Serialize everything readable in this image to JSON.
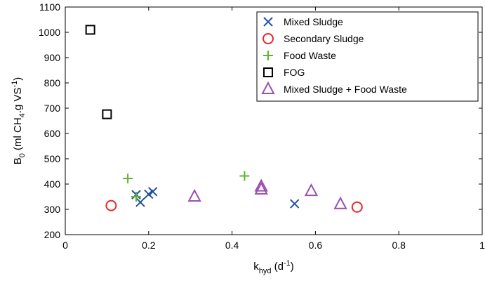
{
  "chart_data": {
    "type": "scatter",
    "xlim": [
      0,
      1
    ],
    "ylim": [
      200,
      1100
    ],
    "xticks": [
      0,
      0.2,
      0.4,
      0.6,
      0.8,
      1
    ],
    "yticks": [
      200,
      300,
      400,
      500,
      600,
      700,
      800,
      900,
      1000,
      1100
    ],
    "xtick_labels": [
      "0",
      "0.2",
      "0.4",
      "0.6",
      "0.8",
      "1"
    ],
    "ytick_labels": [
      "200",
      "300",
      "400",
      "500",
      "600",
      "700",
      "800",
      "900",
      "1000",
      "1100"
    ],
    "xlabel": {
      "base": "k",
      "sub": "hyd",
      "unit_open": " (d",
      "sup": "-1",
      "unit_close": ")"
    },
    "ylabel": {
      "base": "B",
      "sub": "0",
      "unit_a": " (ml CH",
      "sub2": "4",
      "unit_b": ".g VS",
      "sup": "-1",
      "unit_close": ")"
    },
    "grid": false,
    "legend_position": "top-right",
    "series": [
      {
        "name": "Mixed Sludge",
        "marker": "x",
        "color": "#1f4fa0",
        "points": [
          [
            0.17,
            358
          ],
          [
            0.18,
            328
          ],
          [
            0.2,
            360
          ],
          [
            0.21,
            370
          ],
          [
            0.55,
            322
          ]
        ]
      },
      {
        "name": "Secondary Sludge",
        "marker": "circle",
        "color": "#e8262a",
        "points": [
          [
            0.11,
            315
          ],
          [
            0.7,
            309
          ]
        ]
      },
      {
        "name": "Food Waste",
        "marker": "plus",
        "color": "#5cb531",
        "points": [
          [
            0.15,
            422
          ],
          [
            0.17,
            350
          ],
          [
            0.43,
            432
          ]
        ]
      },
      {
        "name": "FOG",
        "marker": "square",
        "color": "#000000",
        "points": [
          [
            0.06,
            1010
          ],
          [
            0.1,
            676
          ]
        ]
      },
      {
        "name": "Mixed Sludge + Food Waste",
        "marker": "triangle",
        "color": "#9b4fb0",
        "points": [
          [
            0.31,
            350
          ],
          [
            0.47,
            390
          ],
          [
            0.47,
            378
          ],
          [
            0.59,
            372
          ],
          [
            0.66,
            320
          ]
        ]
      }
    ]
  }
}
